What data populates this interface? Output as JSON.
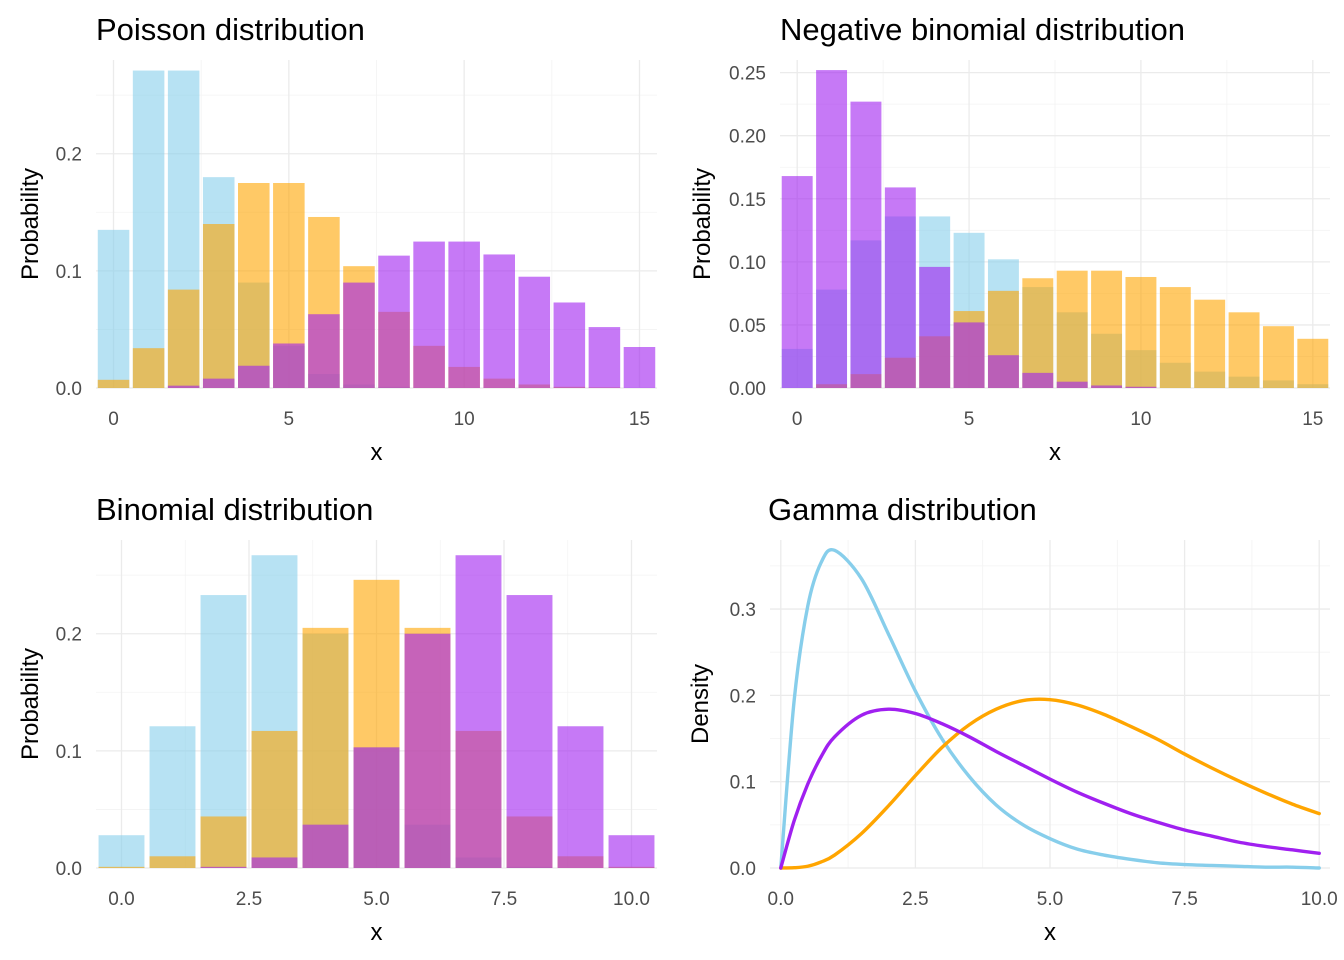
{
  "colors": {
    "low": "#87CEEB",
    "mid": "#FFA500",
    "high": "#A020F0"
  },
  "chart_data": [
    {
      "type": "bar",
      "title": "Poisson distribution",
      "xlabel": "x",
      "ylabel": "Probability",
      "xlim": [
        -0.5,
        15.5
      ],
      "ylim": [
        0,
        0.28
      ],
      "x_ticks": [
        0,
        5,
        10,
        15
      ],
      "x_tick_labels": [
        "0",
        "5",
        "10",
        "15"
      ],
      "y_ticks": [
        0,
        0.1,
        0.2
      ],
      "y_tick_labels": [
        "0.0",
        "0.1",
        "0.2"
      ],
      "grid": true,
      "legend": "none",
      "x": [
        0,
        1,
        2,
        3,
        4,
        5,
        6,
        7,
        8,
        9,
        10,
        11,
        12,
        13,
        14,
        15
      ],
      "series": [
        {
          "color": "#87CEEB",
          "values": [
            0.135,
            0.271,
            0.271,
            0.18,
            0.09,
            0.036,
            0.012,
            0.003,
            0.001,
            0,
            0,
            0,
            0,
            0,
            0,
            0
          ]
        },
        {
          "color": "#FFA500",
          "values": [
            0.007,
            0.034,
            0.084,
            0.14,
            0.175,
            0.175,
            0.146,
            0.104,
            0.065,
            0.036,
            0.018,
            0.008,
            0.003,
            0.001,
            0.0005,
            0
          ]
        },
        {
          "color": "#A020F0",
          "values": [
            0,
            0,
            0.002,
            0.008,
            0.019,
            0.038,
            0.063,
            0.09,
            0.113,
            0.125,
            0.125,
            0.114,
            0.095,
            0.073,
            0.052,
            0.035
          ]
        }
      ]
    },
    {
      "type": "bar",
      "title": "Negative binomial distribution",
      "xlabel": "x",
      "ylabel": "Probability",
      "xlim": [
        -0.5,
        15.5
      ],
      "ylim": [
        0,
        0.26
      ],
      "x_ticks": [
        0,
        5,
        10,
        15
      ],
      "x_tick_labels": [
        "0",
        "5",
        "10",
        "15"
      ],
      "y_ticks": [
        0,
        0.05,
        0.1,
        0.15,
        0.2,
        0.25
      ],
      "y_tick_labels": [
        "0.00",
        "0.05",
        "0.10",
        "0.15",
        "0.20",
        "0.25"
      ],
      "grid": true,
      "legend": "none",
      "x": [
        0,
        1,
        2,
        3,
        4,
        5,
        6,
        7,
        8,
        9,
        10,
        11,
        12,
        13,
        14,
        15
      ],
      "series": [
        {
          "color": "#87CEEB",
          "values": [
            0.031,
            0.078,
            0.117,
            0.136,
            0.136,
            0.123,
            0.102,
            0.08,
            0.06,
            0.043,
            0.03,
            0.02,
            0.013,
            0.009,
            0.006,
            0.003
          ]
        },
        {
          "color": "#FFA500",
          "values": [
            0,
            0.003,
            0.011,
            0.024,
            0.041,
            0.061,
            0.077,
            0.087,
            0.093,
            0.093,
            0.088,
            0.08,
            0.07,
            0.06,
            0.049,
            0.039
          ]
        },
        {
          "color": "#A020F0",
          "values": [
            0.168,
            0.252,
            0.227,
            0.159,
            0.096,
            0.052,
            0.026,
            0.012,
            0.005,
            0.002,
            0.001,
            0,
            0,
            0,
            0,
            0
          ]
        }
      ]
    },
    {
      "type": "bar",
      "title": "Binomial distribution",
      "xlabel": "x",
      "ylabel": "Probability",
      "xlim": [
        -0.5,
        10.5
      ],
      "ylim": [
        0,
        0.28
      ],
      "x_ticks": [
        0,
        2.5,
        5,
        7.5,
        10
      ],
      "x_tick_labels": [
        "0.0",
        "2.5",
        "5.0",
        "7.5",
        "10.0"
      ],
      "y_ticks": [
        0,
        0.1,
        0.2
      ],
      "y_tick_labels": [
        "0.0",
        "0.1",
        "0.2"
      ],
      "grid": true,
      "legend": "none",
      "x": [
        0,
        1,
        2,
        3,
        4,
        5,
        6,
        7,
        8,
        9,
        10
      ],
      "series": [
        {
          "color": "#87CEEB",
          "values": [
            0.028,
            0.121,
            0.233,
            0.267,
            0.2,
            0.103,
            0.037,
            0.009,
            0.001,
            0,
            0
          ]
        },
        {
          "color": "#FFA500",
          "values": [
            0.001,
            0.01,
            0.044,
            0.117,
            0.205,
            0.246,
            0.205,
            0.117,
            0.044,
            0.01,
            0.001
          ]
        },
        {
          "color": "#A020F0",
          "values": [
            0,
            0,
            0.001,
            0.009,
            0.037,
            0.103,
            0.2,
            0.267,
            0.233,
            0.121,
            0.028
          ]
        }
      ]
    },
    {
      "type": "line",
      "title": "Gamma distribution",
      "xlabel": "x",
      "ylabel": "Density",
      "xlim": [
        -0.2,
        10.2
      ],
      "ylim": [
        0,
        0.38
      ],
      "x_ticks": [
        0,
        2.5,
        5,
        7.5,
        10
      ],
      "x_tick_labels": [
        "0.0",
        "2.5",
        "5.0",
        "7.5",
        "10.0"
      ],
      "y_ticks": [
        0,
        0.1,
        0.2,
        0.3
      ],
      "y_tick_labels": [
        "0.0",
        "0.1",
        "0.2",
        "0.3"
      ],
      "grid": true,
      "legend": "none",
      "x": [
        0,
        0.25,
        0.5,
        0.75,
        1,
        1.5,
        2,
        2.5,
        3,
        3.5,
        4,
        4.5,
        5,
        5.5,
        6,
        6.5,
        7,
        7.5,
        8,
        8.5,
        9,
        9.5,
        10
      ],
      "series": [
        {
          "color": "#87CEEB",
          "values": [
            0,
            0.195,
            0.303,
            0.354,
            0.368,
            0.335,
            0.271,
            0.205,
            0.149,
            0.106,
            0.073,
            0.05,
            0.034,
            0.022,
            0.015,
            0.01,
            0.006,
            0.004,
            0.003,
            0.002,
            0.001,
            0.001,
            0
          ]
        },
        {
          "color": "#FFA500",
          "values": [
            0,
            0.0003,
            0.002,
            0.007,
            0.015,
            0.04,
            0.072,
            0.107,
            0.14,
            0.166,
            0.184,
            0.194,
            0.195,
            0.189,
            0.178,
            0.164,
            0.149,
            0.132,
            0.116,
            0.101,
            0.087,
            0.074,
            0.063
          ]
        },
        {
          "color": "#A020F0",
          "values": [
            0,
            0.055,
            0.097,
            0.129,
            0.152,
            0.177,
            0.184,
            0.179,
            0.167,
            0.152,
            0.135,
            0.119,
            0.103,
            0.088,
            0.075,
            0.063,
            0.053,
            0.044,
            0.037,
            0.03,
            0.025,
            0.021,
            0.017
          ]
        }
      ]
    }
  ]
}
